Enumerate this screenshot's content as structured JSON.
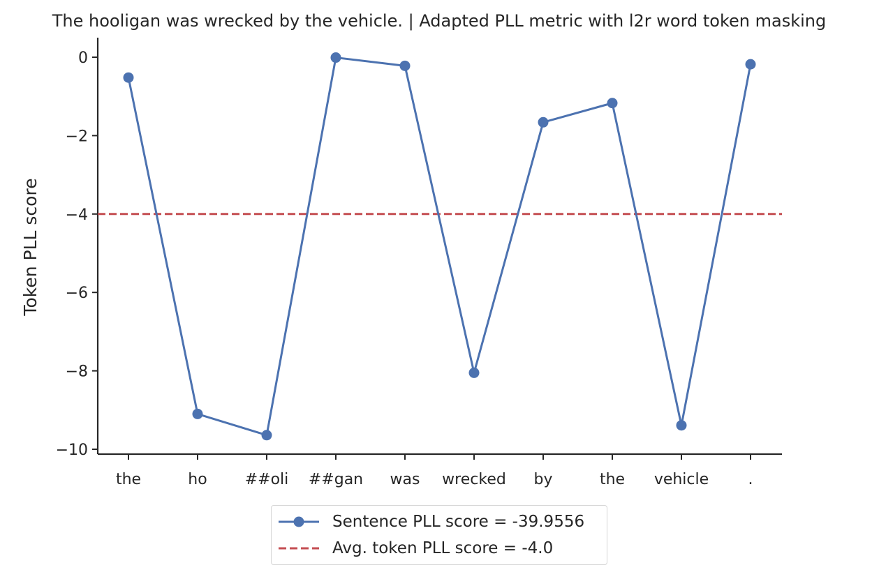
{
  "chart_data": {
    "type": "line",
    "title": "The hooligan was wrecked by the vehicle. | Adapted PLL metric with l2r word token masking",
    "xlabel": "",
    "ylabel": "Token PLL score",
    "categories": [
      "the",
      "ho",
      "##oli",
      "##gan",
      "was",
      "wrecked",
      "by",
      "the",
      "vehicle",
      "."
    ],
    "series": [
      {
        "name": "Sentence PLL score = -39.9556",
        "values": [
          -0.52,
          -9.1,
          -9.64,
          -0.01,
          -0.22,
          -8.05,
          -1.66,
          -1.17,
          -9.39,
          -0.18
        ],
        "color": "#4c72b0",
        "marker": "circle",
        "linestyle": "solid"
      }
    ],
    "reference_lines": [
      {
        "name": "Avg. token PLL score = -4.0",
        "y": -4.0,
        "color": "#c44e52",
        "linestyle": "dashed"
      }
    ],
    "ylim": [
      -10.15,
      0.5
    ],
    "yticks": [
      0,
      -2,
      -4,
      -6,
      -8,
      -10
    ],
    "ytick_labels": [
      "0",
      "−2",
      "−4",
      "−6",
      "−8",
      "−10"
    ],
    "grid": false,
    "legend_placement": "bottom-center, below plot"
  }
}
